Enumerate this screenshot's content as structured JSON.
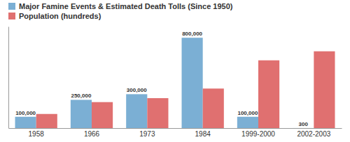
{
  "chart_data": {
    "type": "bar",
    "categories": [
      "1958",
      "1966",
      "1973",
      "1984",
      "1999-2000",
      "2002-2003"
    ],
    "series": [
      {
        "name": "Major Famine Events & Estimated Death Tolls (Since 1950)",
        "color": "#7bafd4",
        "values": [
          100000,
          250000,
          300000,
          800000,
          100000,
          300
        ],
        "data_labels": true,
        "value_labels": [
          "100,000",
          "250,000",
          "300,000",
          "800,000",
          "100,000",
          "300"
        ]
      },
      {
        "name": "Population (hundreds)",
        "color": "#e07070",
        "values": [
          125000,
          230000,
          265000,
          350000,
          600000,
          680000
        ]
      }
    ],
    "ylim": [
      0,
      900000
    ],
    "yticks": [],
    "grid": false,
    "legend": "upper left",
    "tick_labels": "x"
  }
}
